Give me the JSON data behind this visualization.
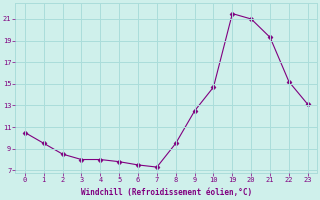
{
  "hours": [
    0,
    1,
    2,
    3,
    4,
    5,
    6,
    7,
    8,
    9,
    10,
    19,
    20,
    21,
    22,
    23
  ],
  "y": [
    10.5,
    9.5,
    8.5,
    8.0,
    8.0,
    7.8,
    7.5,
    7.3,
    9.5,
    12.5,
    14.7,
    21.5,
    21.0,
    19.3,
    15.2,
    13.1
  ],
  "line_color": "#800080",
  "marker": "D",
  "marker_size": 2.5,
  "bg_color": "#cff0eb",
  "grid_color": "#aaddda",
  "xlabel": "Windchill (Refroidissement éolien,°C)",
  "xlabel_color": "#800080",
  "tick_color": "#800080",
  "ylabel_ticks": [
    7,
    9,
    11,
    13,
    15,
    17,
    19,
    21
  ],
  "xtick_labels": [
    "0",
    "1",
    "2",
    "3",
    "4",
    "5",
    "6",
    "7",
    "8",
    "9",
    "10",
    "19",
    "20",
    "21",
    "22",
    "23"
  ],
  "ylim": [
    6.8,
    22.5
  ]
}
